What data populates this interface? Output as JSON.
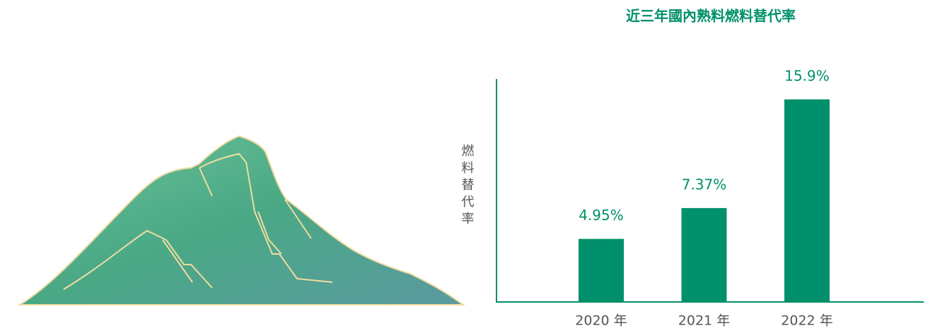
{
  "chart_data": {
    "type": "bar",
    "title": "近三年國內熟料燃料替代率",
    "y_label": "燃料替代率",
    "categories": [
      "2020 年",
      "2021 年",
      "2022 年"
    ],
    "values": [
      4.95,
      7.37,
      15.9
    ],
    "value_labels": [
      "4.95%",
      "7.37%",
      "15.9%"
    ],
    "color": "#00906b",
    "ylim": [
      0,
      17.5
    ]
  }
}
